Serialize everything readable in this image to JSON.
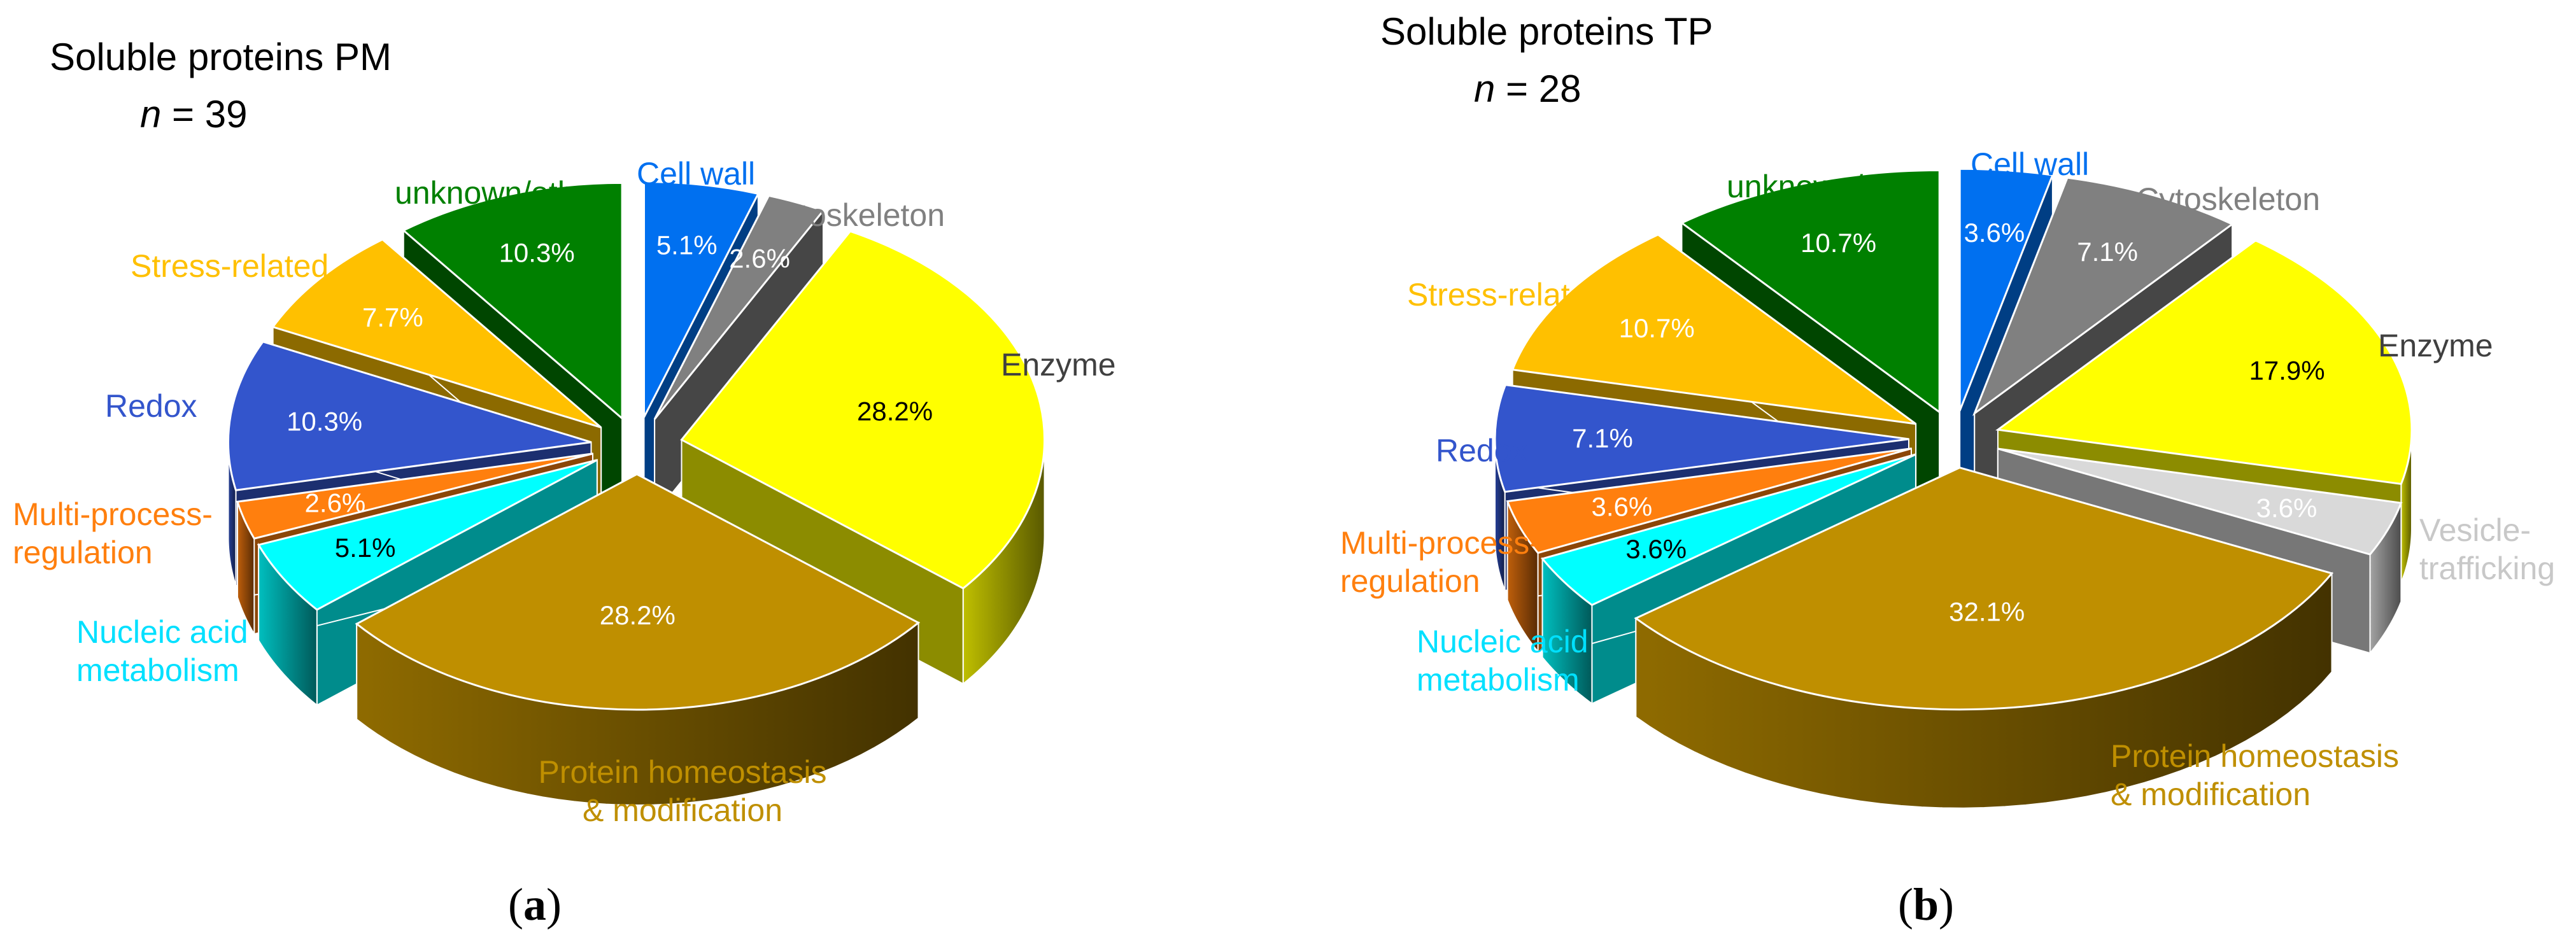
{
  "chart_data": [
    {
      "type": "pie",
      "panel_label": "a",
      "title": "Soluble proteins PM",
      "n_label": "n",
      "n_value": "= 39",
      "slices": [
        {
          "label": "Cell wall",
          "value": 5.1,
          "value_label": "5.1%",
          "color": "#0070f0",
          "label_color": "#0070f0",
          "text_color": "#ffffff"
        },
        {
          "label": "Cytoskeleton",
          "value": 2.6,
          "value_label": "2.6%",
          "color": "#808080",
          "label_color": "#808080",
          "text_color": "#ffffff"
        },
        {
          "label": "Enzyme",
          "value": 28.2,
          "value_label": "28.2%",
          "color": "#ffff00",
          "label_color": "#404040",
          "text_color": "#000000"
        },
        {
          "label": "Protein homeostasis & modification",
          "lines": [
            "Protein homeostasis",
            "& modification"
          ],
          "value": 28.2,
          "value_label": "28.2%",
          "color": "#bf8f00",
          "label_color": "#bf8f00",
          "text_color": "#ffffff"
        },
        {
          "label": "Nucleic acid metabolism",
          "lines": [
            "Nucleic acid",
            "metabolism"
          ],
          "value": 5.1,
          "value_label": "5.1%",
          "color": "#00ffff",
          "label_color": "#00e0ff",
          "text_color": "#000000"
        },
        {
          "label": "Multi-process-regulation",
          "lines": [
            "Multi-process-",
            "regulation"
          ],
          "value": 2.6,
          "value_label": "2.6%",
          "color": "#ff7f0e",
          "label_color": "#ff7f0e",
          "text_color": "#ffffff"
        },
        {
          "label": "Redox",
          "value": 10.3,
          "value_label": "10.3%",
          "color": "#3355cc",
          "label_color": "#3355cc",
          "text_color": "#ffffff"
        },
        {
          "label": "Stress-related",
          "value": 7.7,
          "value_label": "7.7%",
          "color": "#ffc000",
          "label_color": "#ffc000",
          "text_color": "#ffffff"
        },
        {
          "label": "unknown/other",
          "value": 10.3,
          "value_label": "10.3%",
          "color": "#008000",
          "label_color": "#008000",
          "text_color": "#ffffff"
        }
      ]
    },
    {
      "type": "pie",
      "panel_label": "b",
      "title": "Soluble proteins TP",
      "n_label": "n",
      "n_value": "= 28",
      "slices": [
        {
          "label": "Cell wall",
          "value": 3.6,
          "value_label": "3.6%",
          "color": "#0070f0",
          "label_color": "#0070f0",
          "text_color": "#ffffff"
        },
        {
          "label": "Cytoskeleton",
          "value": 7.1,
          "value_label": "7.1%",
          "color": "#808080",
          "label_color": "#808080",
          "text_color": "#ffffff"
        },
        {
          "label": "Enzyme",
          "value": 17.9,
          "value_label": "17.9%",
          "color": "#ffff00",
          "label_color": "#404040",
          "text_color": "#000000"
        },
        {
          "label": "Vesicle-trafficking",
          "lines": [
            "Vesicle-",
            "trafficking"
          ],
          "value": 3.6,
          "value_label": "3.6%",
          "color": "#d9d9d9",
          "label_color": "#c8c8c8",
          "text_color": "#ffffff"
        },
        {
          "label": "Protein homeostasis & modification",
          "lines": [
            "Protein homeostasis",
            "& modification"
          ],
          "value": 32.1,
          "value_label": "32.1%",
          "color": "#bf8f00",
          "label_color": "#bf8f00",
          "text_color": "#ffffff"
        },
        {
          "label": "Nucleic acid metabolism",
          "lines": [
            "Nucleic acid",
            "metabolism"
          ],
          "value": 3.6,
          "value_label": "3.6%",
          "color": "#00ffff",
          "label_color": "#00e0ff",
          "text_color": "#000000"
        },
        {
          "label": "Multi-process-regulation",
          "lines": [
            "Multi-process-",
            "regulation"
          ],
          "value": 3.6,
          "value_label": "3.6%",
          "color": "#ff7f0e",
          "label_color": "#ff7f0e",
          "text_color": "#ffffff"
        },
        {
          "label": "Redox",
          "value": 7.1,
          "value_label": "7.1%",
          "color": "#3355cc",
          "label_color": "#3355cc",
          "text_color": "#ffffff"
        },
        {
          "label": "Stress-related",
          "value": 10.7,
          "value_label": "10.7%",
          "color": "#ffc000",
          "label_color": "#ffc000",
          "text_color": "#ffffff"
        },
        {
          "label": "unknown/other",
          "value": 10.7,
          "value_label": "10.7%",
          "color": "#008000",
          "label_color": "#008000",
          "text_color": "#ffffff"
        }
      ]
    }
  ]
}
